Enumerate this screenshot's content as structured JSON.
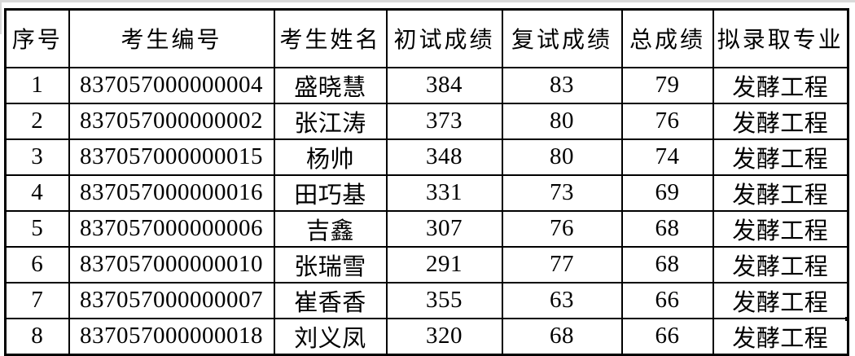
{
  "table": {
    "columns": [
      {
        "id": "index",
        "label": "序号"
      },
      {
        "id": "candidate_id",
        "label": "考生编号"
      },
      {
        "id": "candidate_name",
        "label": "考生姓名"
      },
      {
        "id": "initial_exam_score",
        "label": "初试成绩"
      },
      {
        "id": "retest_score",
        "label": "复试成绩"
      },
      {
        "id": "total_score",
        "label": "总成绩"
      },
      {
        "id": "proposed_major",
        "label": "拟录取专业"
      }
    ],
    "rows": [
      {
        "index": "1",
        "candidate_id": "837057000000004",
        "candidate_name": "盛晓慧",
        "initial_exam_score": "384",
        "retest_score": "83",
        "total_score": "79",
        "proposed_major": "发酵工程"
      },
      {
        "index": "2",
        "candidate_id": "837057000000002",
        "candidate_name": "张江涛",
        "initial_exam_score": "373",
        "retest_score": "80",
        "total_score": "76",
        "proposed_major": "发酵工程"
      },
      {
        "index": "3",
        "candidate_id": "837057000000015",
        "candidate_name": "杨帅",
        "initial_exam_score": "348",
        "retest_score": "80",
        "total_score": "74",
        "proposed_major": "发酵工程"
      },
      {
        "index": "4",
        "candidate_id": "837057000000016",
        "candidate_name": "田巧基",
        "initial_exam_score": "331",
        "retest_score": "73",
        "total_score": "69",
        "proposed_major": "发酵工程"
      },
      {
        "index": "5",
        "candidate_id": "837057000000006",
        "candidate_name": "吉鑫",
        "initial_exam_score": "307",
        "retest_score": "76",
        "total_score": "68",
        "proposed_major": "发酵工程"
      },
      {
        "index": "6",
        "candidate_id": "837057000000010",
        "candidate_name": "张瑞雪",
        "initial_exam_score": "291",
        "retest_score": "77",
        "total_score": "68",
        "proposed_major": "发酵工程"
      },
      {
        "index": "7",
        "candidate_id": "837057000000007",
        "candidate_name": "崔香香",
        "initial_exam_score": "355",
        "retest_score": "63",
        "total_score": "66",
        "proposed_major": "发酵工程"
      },
      {
        "index": "8",
        "candidate_id": "837057000000018",
        "candidate_name": "刘义凤",
        "initial_exam_score": "320",
        "retest_score": "68",
        "total_score": "66",
        "proposed_major": "发酵工程"
      }
    ]
  },
  "colors": {
    "border": "#000000",
    "text": "#000000",
    "background": "#ffffff"
  }
}
